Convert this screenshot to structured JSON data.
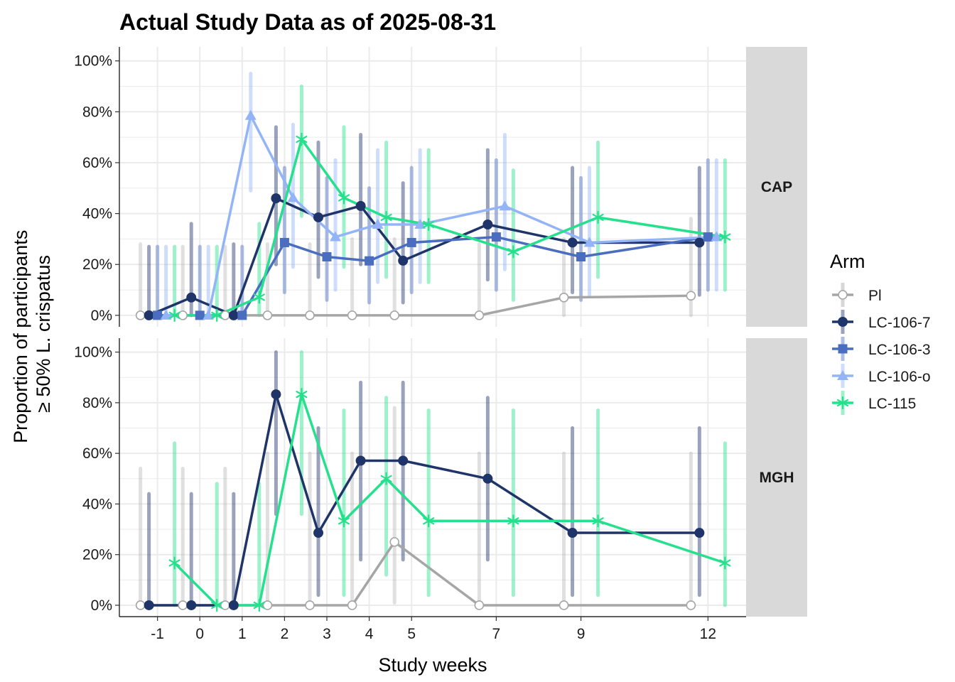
{
  "chart_data": {
    "type": "line",
    "title": "Actual Study Data as of 2025-08-31",
    "xlabel": "Study weeks",
    "ylabel_lines": [
      "Proportion of participants",
      "≥ 50% L. crispatus"
    ],
    "x_ticks": [
      -1,
      0,
      1,
      2,
      3,
      4,
      5,
      7,
      9,
      12
    ],
    "x_tick_labels": [
      "-1",
      "0",
      "1",
      "2",
      "3",
      "4",
      "5",
      "7",
      "9",
      "12"
    ],
    "y_ticks": [
      0,
      20,
      40,
      60,
      80,
      100
    ],
    "y_tick_labels": [
      "0%",
      "20%",
      "40%",
      "60%",
      "80%",
      "100%"
    ],
    "ylim": [
      0,
      100
    ],
    "legend": {
      "title": "Arm",
      "position": "right"
    },
    "grid": true,
    "series_styles": [
      {
        "name": "Pl",
        "color": "#A6A6A6",
        "shape": "open-circle"
      },
      {
        "name": "LC-106-7",
        "color": "#1F3468",
        "shape": "circle"
      },
      {
        "name": "LC-106-3",
        "color": "#4A6DC0",
        "shape": "square"
      },
      {
        "name": "LC-106-o",
        "color": "#93B4F7",
        "shape": "triangle"
      },
      {
        "name": "LC-115",
        "color": "#25E08C",
        "shape": "asterisk"
      }
    ],
    "panels": [
      {
        "name": "CAP",
        "series": [
          {
            "name": "Pl",
            "x": [
              -1,
              0,
              1,
              2,
              3,
              4,
              5,
              7,
              9,
              12
            ],
            "values": [
              0,
              0,
              0,
              0,
              0,
              0,
              0,
              0,
              7,
              7.7
            ],
            "ci": [
              [
                0,
                28
              ],
              [
                0,
                27
              ],
              [
                0,
                27
              ],
              [
                0,
                28
              ],
              [
                0,
                28
              ],
              [
                0,
                30
              ],
              [
                0,
                30
              ],
              [
                0,
                28
              ],
              [
                0,
                30
              ],
              [
                0,
                38
              ]
            ]
          },
          {
            "name": "LC-106-7",
            "x": [
              -1,
              0,
              1,
              2,
              3,
              4,
              5,
              7,
              9,
              12
            ],
            "values": [
              0,
              7,
              0,
              46,
              38.5,
              43,
              21.5,
              35.7,
              28.6,
              28.6
            ],
            "ci": [
              [
                0,
                27
              ],
              [
                0,
                36
              ],
              [
                0,
                28
              ],
              [
                20,
                74
              ],
              [
                15,
                68
              ],
              [
                20,
                71
              ],
              [
                5,
                52
              ],
              [
                14,
                65
              ],
              [
                9,
                58
              ],
              [
                8,
                58
              ]
            ]
          },
          {
            "name": "LC-106-3",
            "x": [
              -1,
              0,
              1,
              2,
              3,
              4,
              5,
              7,
              9,
              12
            ],
            "values": [
              0,
              0,
              0,
              28.6,
              23,
              21.4,
              28.6,
              30.8,
              23,
              30.8
            ],
            "ci": [
              [
                0,
                27
              ],
              [
                0,
                27
              ],
              [
                0,
                27
              ],
              [
                9,
                58
              ],
              [
                6,
                54
              ],
              [
                5,
                50
              ],
              [
                9,
                58
              ],
              [
                10,
                61
              ],
              [
                6,
                54
              ],
              [
                10,
                61
              ]
            ]
          },
          {
            "name": "LC-106-o",
            "x": [
              -1,
              0,
              1,
              2,
              3,
              4,
              5,
              7,
              9,
              12
            ],
            "values": [
              0,
              0,
              78.5,
              46.2,
              30.8,
              35.7,
              35.7,
              42.9,
              28.6,
              30.8
            ],
            "ci": [
              [
                0,
                27
              ],
              [
                0,
                27
              ],
              [
                49,
                95
              ],
              [
                19,
                75
              ],
              [
                10,
                61
              ],
              [
                13,
                65
              ],
              [
                13,
                65
              ],
              [
                18,
                71
              ],
              [
                8,
                58
              ],
              [
                10,
                61
              ]
            ]
          },
          {
            "name": "LC-115",
            "x": [
              -1,
              0,
              1,
              2,
              3,
              4,
              5,
              7,
              9,
              12
            ],
            "values": [
              0,
              0,
              7.1,
              69.2,
              46.2,
              38.5,
              35.7,
              25,
              38.5,
              30.8
            ],
            "ci": [
              [
                0,
                27
              ],
              [
                0,
                27
              ],
              [
                0,
                36
              ],
              [
                39,
                90
              ],
              [
                19,
                74
              ],
              [
                15,
                68
              ],
              [
                13,
                65
              ],
              [
                6,
                57
              ],
              [
                15,
                68
              ],
              [
                10,
                61
              ]
            ]
          }
        ]
      },
      {
        "name": "MGH",
        "series": [
          {
            "name": "Pl",
            "x": [
              -1,
              0,
              1,
              2,
              3,
              4,
              5,
              7,
              9,
              12
            ],
            "values": [
              0,
              0,
              0,
              0,
              0,
              0,
              25,
              0,
              0,
              0
            ],
            "ci": [
              [
                0,
                54
              ],
              [
                0,
                54
              ],
              [
                0,
                54
              ],
              [
                0,
                60
              ],
              [
                0,
                60
              ],
              [
                0,
                60
              ],
              [
                1,
                78
              ],
              [
                0,
                60
              ],
              [
                0,
                60
              ],
              [
                0,
                60
              ]
            ]
          },
          {
            "name": "LC-106-7",
            "x": [
              -1,
              0,
              1,
              2,
              3,
              4,
              5,
              7,
              9,
              12
            ],
            "values": [
              0,
              0,
              0,
              83.3,
              28.6,
              57.1,
              57.1,
              50,
              28.6,
              28.6
            ],
            "ci": [
              [
                0,
                44
              ],
              [
                0,
                44
              ],
              [
                0,
                44
              ],
              [
                36,
                100
              ],
              [
                4,
                70
              ],
              [
                18,
                88
              ],
              [
                18,
                88
              ],
              [
                18,
                82
              ],
              [
                4,
                70
              ],
              [
                4,
                70
              ]
            ]
          },
          {
            "name": "LC-115",
            "x": [
              -1,
              0,
              1,
              2,
              3,
              4,
              5,
              7,
              9,
              12
            ],
            "values": [
              16.7,
              0,
              0,
              83.3,
              33.3,
              50,
              33.3,
              33.3,
              33.3,
              16.7
            ],
            "ci": [
              [
                0,
                64
              ],
              [
                0,
                48
              ],
              [
                0,
                48
              ],
              [
                36,
                100
              ],
              [
                4,
                77
              ],
              [
                12,
                82
              ],
              [
                4,
                77
              ],
              [
                4,
                77
              ],
              [
                4,
                77
              ],
              [
                0,
                64
              ]
            ]
          }
        ]
      }
    ]
  }
}
